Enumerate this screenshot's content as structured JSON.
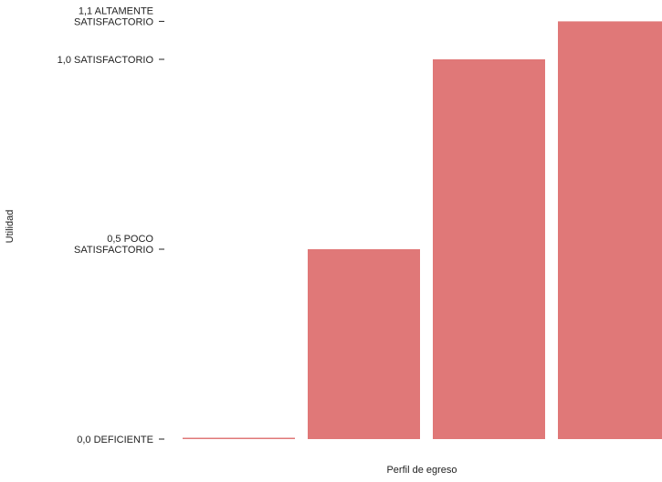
{
  "chart_data": {
    "type": "bar",
    "title": "",
    "xlabel": "Perfil de egreso",
    "ylabel": "Utilidad",
    "categories": [
      "",
      "",
      "",
      ""
    ],
    "values": [
      0.0,
      0.5,
      1.0,
      1.1
    ],
    "ylim": [
      0,
      1.1
    ],
    "y_ticks": [
      {
        "value": 0.0,
        "lines": [
          "0,0 DEFICIENTE"
        ]
      },
      {
        "value": 0.5,
        "lines": [
          "0,5 POCO",
          "SATISFACTORIO"
        ]
      },
      {
        "value": 1.0,
        "lines": [
          "1,0 SATISFACTORIO"
        ]
      },
      {
        "value": 1.1,
        "lines": [
          "1,1 ALTAMENTE",
          "SATISFACTORIO"
        ]
      }
    ],
    "grid": false,
    "legend": "none",
    "colors": {
      "bar": "#e07878",
      "background": "#ffffff",
      "text": "#222222"
    }
  }
}
